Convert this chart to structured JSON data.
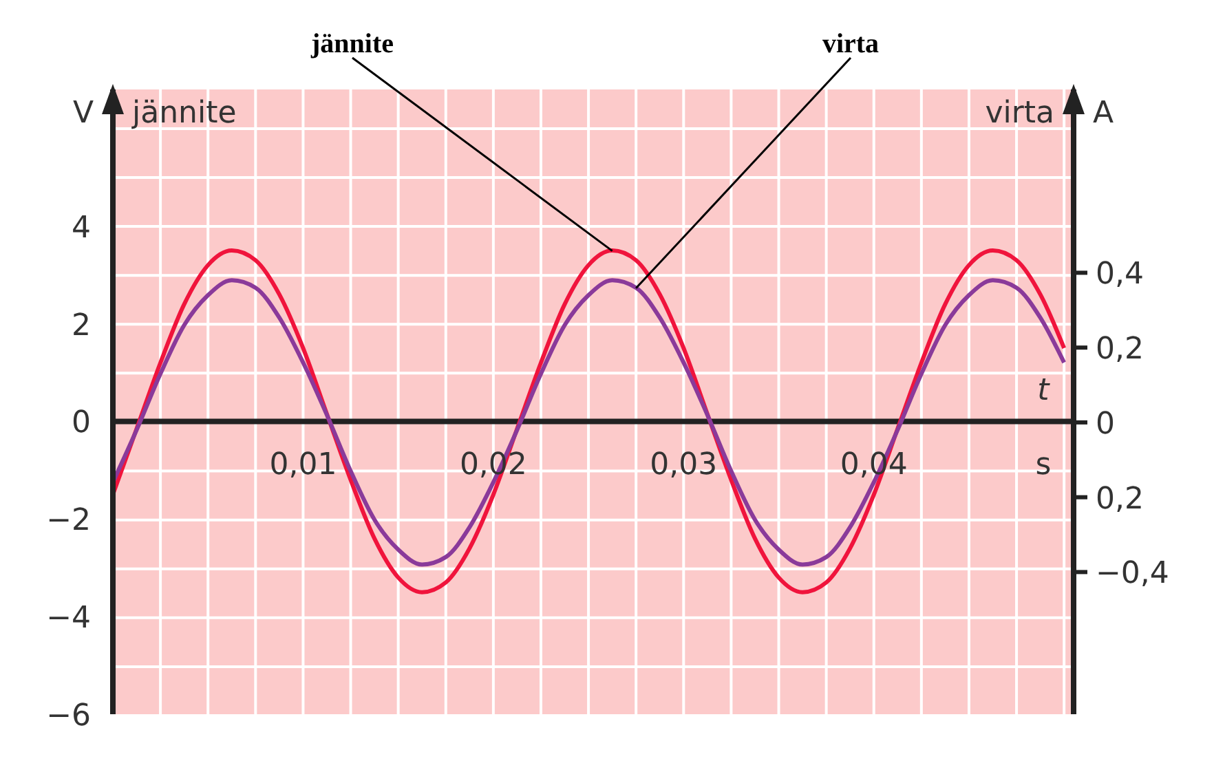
{
  "chart_data": {
    "type": "line",
    "ylabel": "jännite",
    "y2label": "virta",
    "xlabel": "t",
    "annotations": [
      "V",
      "A",
      "s"
    ],
    "x": [
      0,
      0.00125,
      0.0025,
      0.00375,
      0.005,
      0.00625,
      0.0075,
      0.00875,
      0.01,
      0.01125,
      0.0125,
      0.01375,
      0.015,
      0.01625,
      0.0175,
      0.01875,
      0.02,
      0.02125,
      0.0225,
      0.02375,
      0.025,
      0.02625,
      0.0275,
      0.02875,
      0.03,
      0.03125,
      0.0325,
      0.03375,
      0.035,
      0.03625,
      0.0375,
      0.03875,
      0.04,
      0.04125,
      0.0425,
      0.04375,
      0.045,
      0.04625,
      0.0475,
      0.04875,
      0.05
    ],
    "series": [
      {
        "name": "jännite",
        "color": "#f0143c",
        "values": [
          -1.5,
          -0.15,
          1.2,
          2.4,
          3.2,
          3.5,
          3.3,
          2.6,
          1.5,
          0.15,
          -1.2,
          -2.4,
          -3.2,
          -3.5,
          -3.3,
          -2.6,
          -1.5,
          -0.15,
          1.2,
          2.4,
          3.2,
          3.5,
          3.3,
          2.6,
          1.5,
          0.15,
          -1.2,
          -2.4,
          -3.2,
          -3.5,
          -3.3,
          -2.6,
          -1.5,
          -0.15,
          1.2,
          2.4,
          3.2,
          3.5,
          3.3,
          2.6,
          1.5
        ]
      },
      {
        "name": "virta",
        "color": "#8a3a9a",
        "axis": "y2",
        "values": [
          -0.16,
          -0.02,
          0.13,
          0.26,
          0.34,
          0.38,
          0.36,
          0.28,
          0.16,
          0.02,
          -0.13,
          -0.26,
          -0.34,
          -0.38,
          -0.36,
          -0.28,
          -0.16,
          -0.02,
          0.13,
          0.26,
          0.34,
          0.38,
          0.36,
          0.28,
          0.16,
          0.02,
          -0.13,
          -0.26,
          -0.34,
          -0.38,
          -0.36,
          -0.28,
          -0.16,
          -0.02,
          0.13,
          0.26,
          0.34,
          0.38,
          0.36,
          0.28,
          0.16
        ]
      }
    ],
    "xlim": [
      0,
      0.0505
    ],
    "xticks": [
      {
        "value": 0.0025,
        "label": null
      },
      {
        "value": 0.005,
        "label": null
      },
      {
        "value": 0.0075,
        "label": null
      },
      {
        "value": 0.01,
        "label": "0,01"
      },
      {
        "value": 0.0125,
        "label": null
      },
      {
        "value": 0.015,
        "label": null
      },
      {
        "value": 0.0175,
        "label": null
      },
      {
        "value": 0.02,
        "label": "0,02"
      },
      {
        "value": 0.0225,
        "label": null
      },
      {
        "value": 0.025,
        "label": null
      },
      {
        "value": 0.0275,
        "label": null
      },
      {
        "value": 0.03,
        "label": "0,03"
      },
      {
        "value": 0.0325,
        "label": null
      },
      {
        "value": 0.035,
        "label": null
      },
      {
        "value": 0.0375,
        "label": null
      },
      {
        "value": 0.04,
        "label": "0,04"
      },
      {
        "value": 0.0425,
        "label": null
      },
      {
        "value": 0.045,
        "label": null
      },
      {
        "value": 0.0475,
        "label": null
      },
      {
        "value": 0.05,
        "label": null
      }
    ],
    "ylim": [
      -6,
      6.8
    ],
    "yticks": [
      {
        "value": -6,
        "label": "−6"
      },
      {
        "value": -5,
        "label": null
      },
      {
        "value": -4,
        "label": "−4"
      },
      {
        "value": -3,
        "label": null
      },
      {
        "value": -2,
        "label": "−2"
      },
      {
        "value": -1,
        "label": null
      },
      0,
      {
        "value": 1,
        "label": null
      },
      2,
      {
        "value": 3,
        "label": null
      },
      4,
      {
        "value": 5,
        "label": null
      },
      {
        "value": 6,
        "label": null
      }
    ],
    "y2lim": [
      -0.78,
      0.89
    ],
    "y2ticks": [
      {
        "value": -0.4,
        "label": "−0,4"
      },
      {
        "value": -0.2,
        "label": "0,2"
      },
      0,
      {
        "value": 0.2,
        "label": "0,2"
      },
      {
        "value": 0.4,
        "label": "0,4"
      }
    ],
    "grid": true,
    "line_style": "solid",
    "marker": "none"
  }
}
